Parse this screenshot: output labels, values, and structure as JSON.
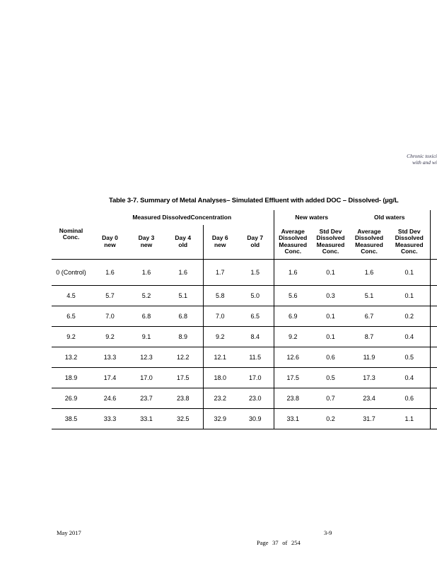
{
  "note": {
    "line1": "Chronic toxici",
    "line2": "with and wi"
  },
  "table": {
    "title": "Table 3-7. Summary of Metal Analyses– Simulated Effluent with added DOC – Dissolved- (µg/L",
    "group_headers": {
      "measured": "Measured DissolvedConcentration",
      "new_waters": "New waters",
      "old_waters": "Old waters"
    },
    "columns": [
      "Nominal\nConc.",
      "Day 0\nnew",
      "Day 3\nnew",
      "Day 4\nold",
      "Day 6\nnew",
      "Day 7\nold",
      "Average\nDissolved\nMeasured\nConc.",
      "Std Dev\nDissolved\nMeasured\nConc.",
      "Average\nDissolved\nMeasured\nConc.",
      "Std Dev\nDissolved\nMeasured\nConc."
    ],
    "rows": [
      [
        "0 (Control)",
        "1.6",
        "1.6",
        "1.6",
        "1.7",
        "1.5",
        "1.6",
        "0.1",
        "1.6",
        "0.1"
      ],
      [
        "4.5",
        "5.7",
        "5.2",
        "5.1",
        "5.8",
        "5.0",
        "5.6",
        "0.3",
        "5.1",
        "0.1"
      ],
      [
        "6.5",
        "7.0",
        "6.8",
        "6.8",
        "7.0",
        "6.5",
        "6.9",
        "0.1",
        "6.7",
        "0.2"
      ],
      [
        "9.2",
        "9.2",
        "9.1",
        "8.9",
        "9.2",
        "8.4",
        "9.2",
        "0.1",
        "8.7",
        "0.4"
      ],
      [
        "13.2",
        "13.3",
        "12.3",
        "12.2",
        "12.1",
        "11.5",
        "12.6",
        "0.6",
        "11.9",
        "0.5"
      ],
      [
        "18.9",
        "17.4",
        "17.0",
        "17.5",
        "18.0",
        "17.0",
        "17.5",
        "0.5",
        "17.3",
        "0.4"
      ],
      [
        "26.9",
        "24.6",
        "23.7",
        "23.8",
        "23.2",
        "23.0",
        "23.8",
        "0.7",
        "23.4",
        "0.6"
      ],
      [
        "38.5",
        "33.3",
        "33.1",
        "32.5",
        "32.9",
        "30.9",
        "33.1",
        "0.2",
        "31.7",
        "1.1"
      ]
    ]
  },
  "footer": {
    "date": "May 2017",
    "section_page": "3-9",
    "page_indicator": "Page 37 of 254"
  }
}
